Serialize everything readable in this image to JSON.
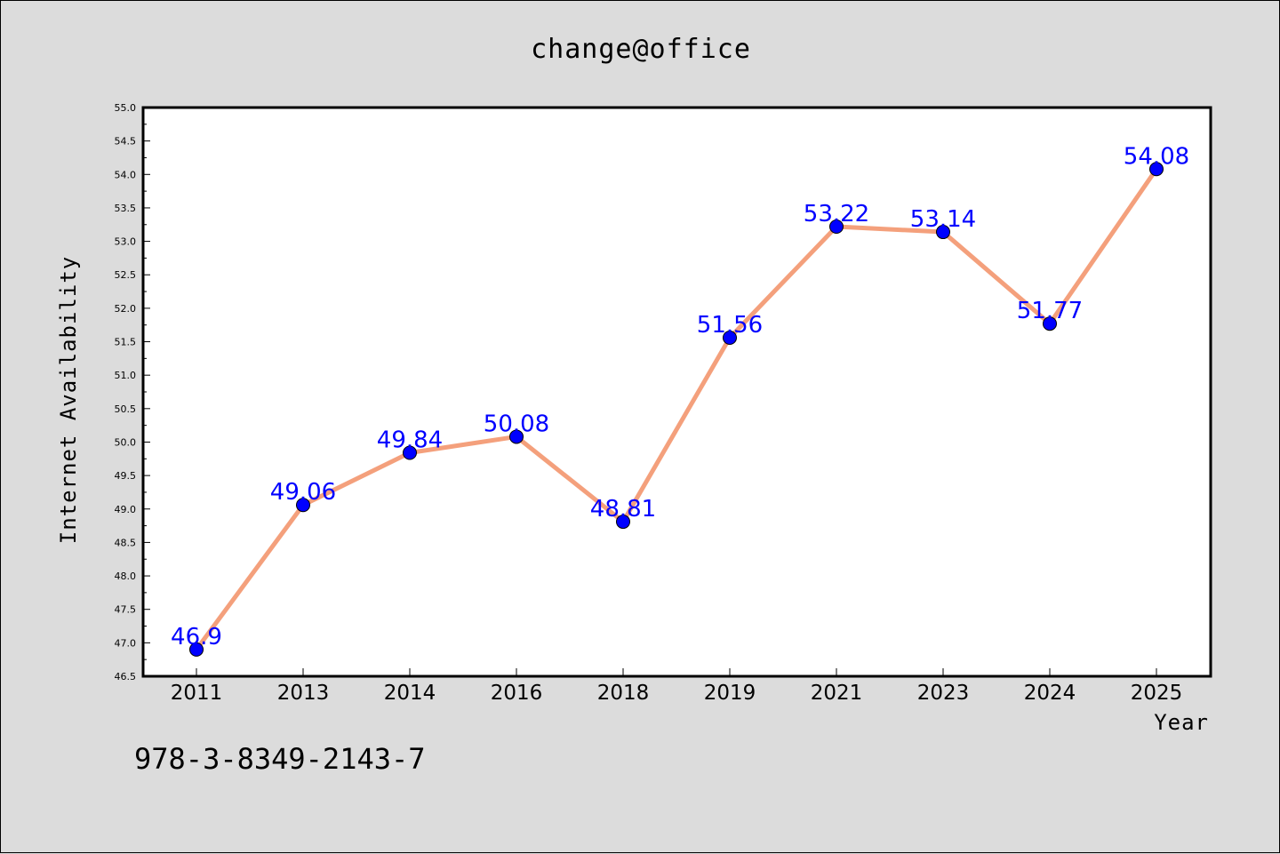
{
  "chart_data": {
    "type": "line",
    "title": "change@office",
    "xlabel": "Year",
    "ylabel": "Internet Availability",
    "categories": [
      "2011",
      "2013",
      "2014",
      "2016",
      "2018",
      "2019",
      "2021",
      "2023",
      "2024",
      "2025"
    ],
    "series": [
      {
        "values": [
          46.9,
          49.06,
          49.84,
          50.08,
          48.81,
          51.56,
          53.22,
          53.14,
          51.77,
          54.08
        ],
        "labels": [
          "46.9",
          "49.06",
          "49.84",
          "50.08",
          "48.81",
          "51.56",
          "53.22",
          "53.14",
          "51.77",
          "54.08"
        ],
        "line_color": "#f4a07c",
        "marker_color": "#0000ff"
      }
    ],
    "ylim": [
      46.5,
      55.0
    ],
    "yticks": [
      "46.5",
      "47.0",
      "47.5",
      "48.0",
      "48.5",
      "49.0",
      "49.5",
      "50.0",
      "50.5",
      "51.0",
      "51.5",
      "52.0",
      "52.5",
      "53.0",
      "53.5",
      "54.0",
      "54.5",
      "55.0"
    ],
    "grid": false,
    "legend": "none"
  },
  "footer_text": "978-3-8349-2143-7"
}
